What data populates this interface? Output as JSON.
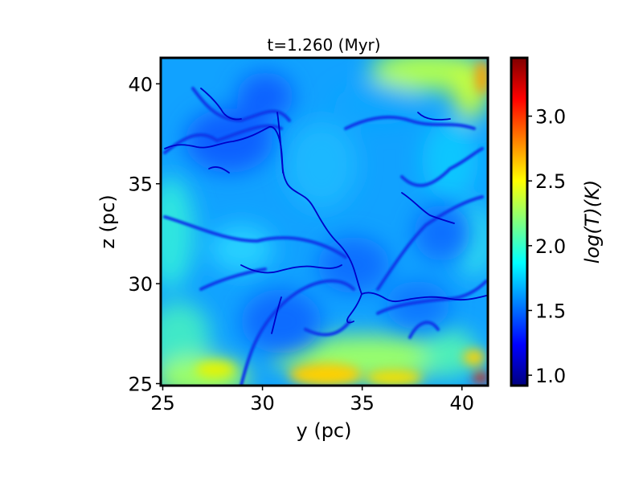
{
  "chart_data": {
    "type": "heatmap",
    "title": "t=1.260 (Myr)",
    "xlabel": "y (pc)",
    "ylabel": "z (pc)",
    "xlim": [
      24.9,
      41.3
    ],
    "ylim": [
      24.9,
      41.3
    ],
    "xticks": [
      25,
      30,
      35,
      40
    ],
    "yticks": [
      25,
      30,
      35,
      40
    ],
    "xtick_labels": [
      "25",
      "30",
      "35",
      "40"
    ],
    "ytick_labels": [
      "25",
      "30",
      "35",
      "40"
    ],
    "colorbar": {
      "label": "log(T)(K)",
      "colormap": "jet",
      "range": [
        0.92,
        3.45
      ],
      "ticks": [
        1.0,
        1.5,
        2.0,
        2.5,
        3.0
      ],
      "tick_labels": [
        "1.0",
        "1.5",
        "2.0",
        "2.5",
        "3.0"
      ]
    },
    "regions": [
      {
        "name": "diffuse warm background",
        "log_T": 1.75
      },
      {
        "name": "cold filament network",
        "log_T": 1.1
      },
      {
        "name": "warm pocket bottom edge",
        "log_T": 2.5
      },
      {
        "name": "hot corner bottom-right",
        "log_T": 3.2
      }
    ]
  },
  "colors": {
    "jet_stops": [
      "#00007f",
      "#0000ff",
      "#007fff",
      "#00ffff",
      "#7fff7f",
      "#ffff00",
      "#ff7f00",
      "#ff0000",
      "#7f0000"
    ]
  }
}
